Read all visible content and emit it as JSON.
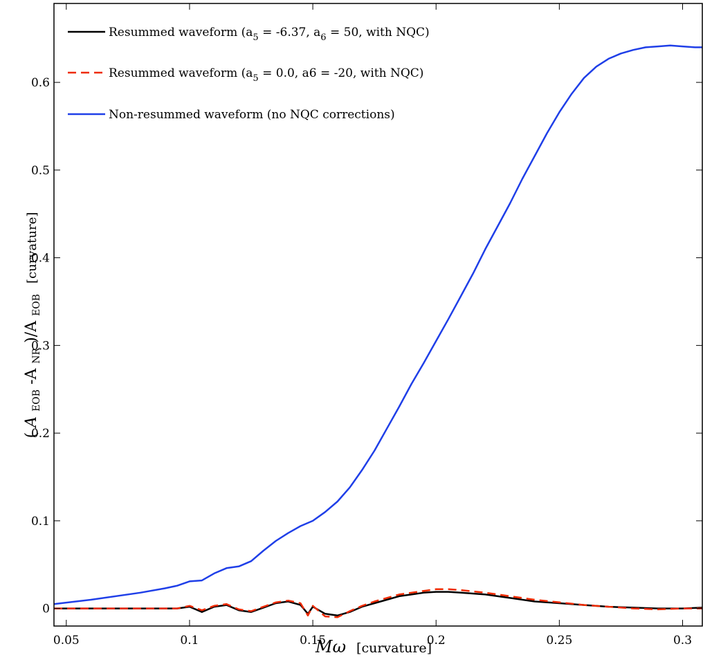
{
  "chart_data": {
    "type": "line",
    "title": "",
    "xlabel": "Mω [curvature]",
    "ylabel": "(A_EOB - A_NR)/A_EOB [curvature]",
    "xlabel_parts": {
      "symbol": "Mω",
      "unit": "[curvature]"
    },
    "ylabel_parts": {
      "open": "(",
      "a1": "A",
      "s1": "EOB",
      "minus": " -A",
      "s2": "NR",
      "close": ")/A",
      "s3": "EOB",
      "unit": "[curvature]"
    },
    "xlim": [
      0.045,
      0.308
    ],
    "ylim": [
      -0.02,
      0.69
    ],
    "xticks": [
      0.05,
      0.1,
      0.15,
      0.2,
      0.25,
      0.3
    ],
    "xtick_labels": [
      "0.05",
      "0.1",
      "0.15",
      "0.2",
      "0.25",
      "0.3"
    ],
    "yticks": [
      0,
      0.1,
      0.2,
      0.3,
      0.4,
      0.5,
      0.6
    ],
    "ytick_labels": [
      "0",
      "0.1",
      "0.2",
      "0.3",
      "0.4",
      "0.5",
      "0.6"
    ],
    "grid": false,
    "legend_position": "top-left",
    "series": [
      {
        "name": "Resummed waveform (a5 = -6.37, a6 = 50, with NQC)",
        "legend": {
          "p1": "Resummed waveform (a",
          "s1": "5",
          "p2": " = -6.37, a",
          "s2": "6",
          "p3": " = 50, with NQC)"
        },
        "color": "#000000",
        "dash": "solid",
        "x": [
          0.045,
          0.06,
          0.08,
          0.095,
          0.1,
          0.105,
          0.11,
          0.115,
          0.12,
          0.125,
          0.13,
          0.135,
          0.14,
          0.145,
          0.148,
          0.15,
          0.155,
          0.16,
          0.165,
          0.17,
          0.175,
          0.18,
          0.185,
          0.19,
          0.195,
          0.2,
          0.205,
          0.21,
          0.22,
          0.23,
          0.24,
          0.25,
          0.26,
          0.27,
          0.28,
          0.29,
          0.3,
          0.308
        ],
        "y": [
          0.0,
          0.0,
          0.0,
          0.0,
          0.002,
          -0.004,
          0.002,
          0.004,
          -0.002,
          -0.004,
          0.001,
          0.006,
          0.008,
          0.004,
          -0.006,
          0.002,
          -0.006,
          -0.008,
          -0.004,
          0.002,
          0.006,
          0.01,
          0.014,
          0.016,
          0.018,
          0.019,
          0.019,
          0.018,
          0.016,
          0.012,
          0.008,
          0.006,
          0.004,
          0.002,
          0.001,
          0.0,
          0.0,
          0.001
        ]
      },
      {
        "name": "Resummed waveform (a5 = 0.0, a6 = -20, with NQC)",
        "legend": {
          "p1": "Resummed waveform (a",
          "s1": "5",
          "p2": " = 0.0, a6 = -20, with NQC)",
          "s2": "",
          "p3": ""
        },
        "color": "#ee2a00",
        "dash": "dashed",
        "x": [
          0.045,
          0.06,
          0.08,
          0.095,
          0.1,
          0.105,
          0.11,
          0.115,
          0.12,
          0.125,
          0.13,
          0.135,
          0.14,
          0.145,
          0.148,
          0.15,
          0.155,
          0.16,
          0.165,
          0.17,
          0.175,
          0.18,
          0.185,
          0.19,
          0.195,
          0.2,
          0.205,
          0.21,
          0.22,
          0.23,
          0.24,
          0.25,
          0.26,
          0.27,
          0.28,
          0.29,
          0.3,
          0.308
        ],
        "y": [
          0.0,
          0.0,
          0.0,
          0.0,
          0.003,
          -0.002,
          0.003,
          0.005,
          -0.001,
          -0.003,
          0.002,
          0.007,
          0.009,
          0.006,
          -0.008,
          0.003,
          -0.009,
          -0.01,
          -0.003,
          0.003,
          0.008,
          0.012,
          0.016,
          0.018,
          0.02,
          0.022,
          0.022,
          0.021,
          0.018,
          0.014,
          0.01,
          0.007,
          0.004,
          0.002,
          0.0,
          -0.001,
          0.0,
          0.0
        ]
      },
      {
        "name": "Non-resummed waveform (no NQC corrections)",
        "legend": {
          "p1": "Non-resummed waveform (no NQC corrections)",
          "s1": "",
          "p2": "",
          "s2": "",
          "p3": ""
        },
        "color": "#1f3fe8",
        "dash": "solid",
        "x": [
          0.045,
          0.06,
          0.08,
          0.09,
          0.095,
          0.1,
          0.105,
          0.11,
          0.115,
          0.12,
          0.125,
          0.13,
          0.135,
          0.14,
          0.145,
          0.15,
          0.155,
          0.16,
          0.165,
          0.17,
          0.175,
          0.18,
          0.185,
          0.19,
          0.195,
          0.2,
          0.205,
          0.21,
          0.215,
          0.22,
          0.225,
          0.23,
          0.235,
          0.24,
          0.245,
          0.25,
          0.255,
          0.26,
          0.265,
          0.27,
          0.275,
          0.28,
          0.285,
          0.29,
          0.295,
          0.3,
          0.305,
          0.308
        ],
        "y": [
          0.005,
          0.01,
          0.018,
          0.023,
          0.026,
          0.031,
          0.032,
          0.04,
          0.046,
          0.048,
          0.054,
          0.066,
          0.077,
          0.086,
          0.094,
          0.1,
          0.11,
          0.122,
          0.138,
          0.158,
          0.18,
          0.205,
          0.23,
          0.256,
          0.28,
          0.305,
          0.33,
          0.356,
          0.382,
          0.41,
          0.436,
          0.462,
          0.49,
          0.516,
          0.542,
          0.566,
          0.587,
          0.605,
          0.618,
          0.627,
          0.633,
          0.637,
          0.64,
          0.641,
          0.642,
          0.641,
          0.64,
          0.64
        ]
      }
    ]
  }
}
